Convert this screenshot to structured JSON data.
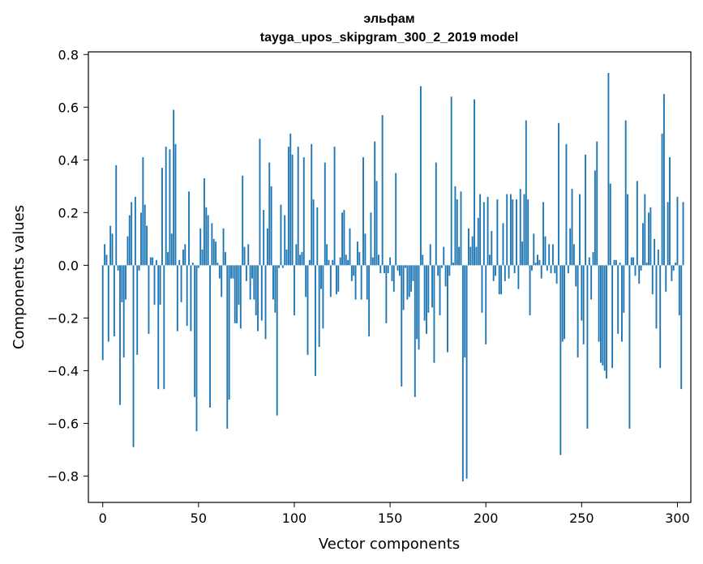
{
  "chart_data": {
    "type": "bar",
    "title": "эльфам",
    "subtitle": "tayga_upos_skipgram_300_2_2019 model",
    "xlabel": "Vector components",
    "ylabel": "Components values",
    "xlim": [
      -7.5,
      307
    ],
    "ylim": [
      -0.9,
      0.81
    ],
    "xticks": [
      0,
      50,
      100,
      150,
      200,
      250,
      300
    ],
    "yticks": [
      -0.8,
      -0.6,
      -0.4,
      -0.2,
      0.0,
      0.2,
      0.4,
      0.6,
      0.8
    ],
    "ytick_labels": [
      "−0.8",
      "−0.6",
      "−0.4",
      "−0.2",
      "0.0",
      "0.2",
      "0.4",
      "0.6",
      "0.8"
    ],
    "bar_color": "#1f77b4",
    "values": [
      -0.36,
      0.08,
      0.04,
      -0.29,
      0.15,
      0.12,
      -0.27,
      0.38,
      -0.02,
      -0.53,
      -0.14,
      -0.35,
      -0.13,
      0.11,
      0.19,
      0.24,
      -0.69,
      0.26,
      -0.34,
      -0.02,
      0.2,
      0.41,
      0.23,
      0.15,
      -0.26,
      0.03,
      0.03,
      -0.15,
      0.02,
      -0.47,
      -0.15,
      0.37,
      -0.47,
      0.45,
      0.05,
      0.44,
      0.12,
      0.59,
      0.46,
      -0.25,
      0.02,
      -0.14,
      0.06,
      0.08,
      -0.23,
      0.28,
      -0.25,
      0.01,
      -0.5,
      -0.63,
      -0.01,
      0.14,
      0.06,
      0.33,
      0.22,
      0.19,
      -0.54,
      0.16,
      0.1,
      0.09,
      0.01,
      -0.05,
      -0.12,
      0.14,
      0.05,
      -0.62,
      -0.51,
      -0.05,
      -0.05,
      -0.22,
      -0.22,
      -0.15,
      -0.24,
      0.34,
      0.07,
      -0.06,
      0.08,
      -0.13,
      -0.05,
      -0.13,
      -0.19,
      -0.25,
      0.48,
      -0.21,
      0.21,
      -0.28,
      0.14,
      0.39,
      0.3,
      -0.13,
      -0.18,
      -0.57,
      -0.01,
      0.23,
      -0.01,
      0.19,
      0.06,
      0.45,
      0.5,
      0.42,
      -0.19,
      0.08,
      0.45,
      0.04,
      0.05,
      0.41,
      -0.12,
      -0.34,
      0.02,
      0.46,
      0.25,
      -0.42,
      0.22,
      -0.31,
      -0.09,
      -0.24,
      0.39,
      0.08,
      0.02,
      -0.12,
      0.02,
      0.45,
      -0.11,
      -0.1,
      0.03,
      0.2,
      0.21,
      0.04,
      0.02,
      0.14,
      -0.06,
      -0.04,
      -0.13,
      0.09,
      0.05,
      -0.13,
      0.41,
      0.12,
      -0.13,
      -0.27,
      0.2,
      0.03,
      0.47,
      0.32,
      0.04,
      -0.03,
      0.57,
      -0.03,
      -0.22,
      -0.03,
      0.03,
      -0.06,
      -0.1,
      0.35,
      -0.02,
      -0.04,
      -0.46,
      -0.17,
      -0.01,
      -0.13,
      -0.12,
      -0.1,
      -0.06,
      -0.5,
      -0.28,
      -0.32,
      0.68,
      0.04,
      -0.21,
      -0.26,
      -0.18,
      0.08,
      -0.16,
      -0.37,
      0.39,
      -0.04,
      -0.19,
      -0.01,
      0.07,
      -0.08,
      -0.33,
      -0.04,
      0.64,
      0.01,
      0.3,
      0.25,
      0.07,
      0.28,
      -0.82,
      -0.35,
      -0.81,
      0.14,
      0.07,
      0.11,
      0.63,
      0.07,
      0.18,
      0.27,
      -0.18,
      0.24,
      -0.3,
      0.26,
      0.04,
      0.13,
      -0.06,
      -0.04,
      0.25,
      -0.11,
      -0.11,
      0.16,
      -0.06,
      0.27,
      -0.05,
      0.27,
      0.25,
      -0.03,
      0.25,
      -0.09,
      0.29,
      0.09,
      0.27,
      0.55,
      0.25,
      -0.19,
      -0.02,
      0.12,
      0.01,
      0.04,
      0.02,
      -0.05,
      0.24,
      0.11,
      -0.02,
      0.08,
      -0.03,
      0.08,
      -0.03,
      -0.07,
      0.54,
      -0.72,
      -0.29,
      -0.28,
      0.46,
      -0.03,
      0.14,
      0.29,
      0.08,
      -0.08,
      -0.35,
      0.27,
      -0.21,
      -0.3,
      0.42,
      -0.62,
      0.03,
      -0.13,
      0.05,
      0.36,
      0.47,
      -0.29,
      -0.37,
      -0.38,
      -0.4,
      -0.43,
      0.73,
      0.31,
      -0.39,
      0.02,
      0.02,
      -0.26,
      0.01,
      -0.29,
      -0.18,
      0.55,
      0.27,
      -0.62,
      0.03,
      0.03,
      -0.04,
      0.32,
      -0.07,
      -0.02,
      0.16,
      0.27,
      0.01,
      0.2,
      0.22,
      -0.11,
      0.1,
      -0.24,
      0.06,
      -0.39,
      0.5,
      0.65,
      -0.1,
      0.24,
      0.41,
      -0.06,
      -0.02,
      0.01,
      0.26,
      -0.19,
      -0.47,
      0.24
    ]
  }
}
